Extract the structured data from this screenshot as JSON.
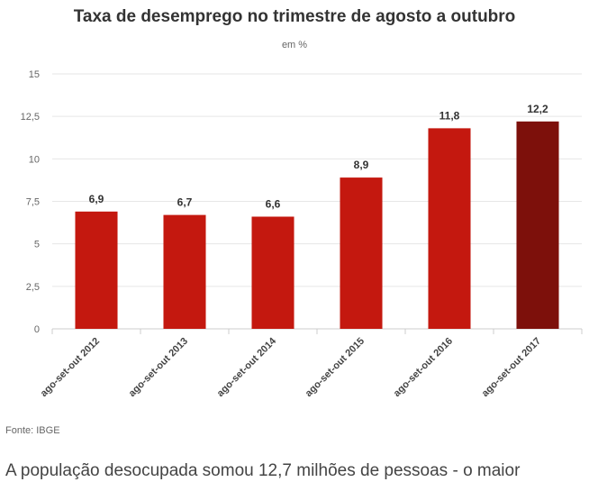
{
  "chart_data": {
    "type": "bar",
    "title": "Taxa de desemprego no trimestre de agosto a outubro",
    "subtitle": "em %",
    "categories": [
      "ago-set-out 2012",
      "ago-set-out 2013",
      "ago-set-out 2014",
      "ago-set-out 2015",
      "ago-set-out 2016",
      "ago-set-out 2017"
    ],
    "values": [
      6.9,
      6.7,
      6.6,
      8.9,
      11.8,
      12.2
    ],
    "value_labels": [
      "6,9",
      "6,7",
      "6,6",
      "8,9",
      "11,8",
      "12,2"
    ],
    "ylim": [
      0,
      15
    ],
    "yticks": [
      0,
      2.5,
      5,
      7.5,
      10,
      12.5,
      15
    ],
    "ytick_labels": [
      "0",
      "2,5",
      "5",
      "7,5",
      "10",
      "12,5",
      "15"
    ],
    "xlabel": "",
    "ylabel": "",
    "grid": true,
    "colors": {
      "bar": "#c4180f",
      "highlight_bar": "#7d100b",
      "grid": "#e6e6e6",
      "axis": "#cccccc"
    },
    "highlight_index": 5
  },
  "source": "Fonte: IBGE",
  "caption": "A população desocupada somou 12,7 milhões de pessoas - o maior"
}
